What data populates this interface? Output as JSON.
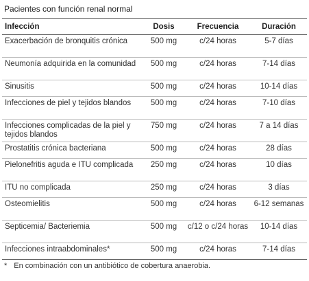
{
  "title": "Pacientes con función renal normal",
  "table": {
    "headers": [
      "Infección",
      "Dosis",
      "Frecuencia",
      "Duración"
    ],
    "rows": [
      [
        "Exacerbación de bronquitis crónica",
        "500 mg",
        "c/24 horas",
        "5-7 días"
      ],
      [
        "Neumonía adquirida en la comunidad",
        "500 mg",
        "c/24 horas",
        "7-14 días"
      ],
      [
        "Sinusitis",
        "500 mg",
        "c/24 horas",
        "10-14 días"
      ],
      [
        "Infecciones de piel y tejidos blandos",
        "500 mg",
        "c/24 horas",
        "7-10 días"
      ],
      [
        "Infecciones complicadas de la piel y tejidos blandos",
        "750 mg",
        "c/24 horas",
        "7 a 14 días"
      ],
      [
        "Prostatitis crónica bacteriana",
        "500 mg",
        "c/24 horas",
        "28 días"
      ],
      [
        "Pielonefritis aguda e ITU complicada",
        "250 mg",
        "c/24 horas",
        "10 días"
      ],
      [
        "ITU no complicada",
        "250 mg",
        "c/24 horas",
        "3 días"
      ],
      [
        "Osteomielitis",
        "500 mg",
        "c/24 horas",
        "6-12 semanas"
      ],
      [
        "Septicemia/ Bacteriemia",
        "500 mg",
        "c/12 o c/24 horas",
        "10-14 días"
      ],
      [
        "Infecciones intraabdominales*",
        "500 mg",
        "c/24 horas",
        "7-14 días"
      ]
    ]
  },
  "footnote": {
    "marker": "*",
    "text": "En combinación con un antibiótico de cobertura anaerobia."
  }
}
